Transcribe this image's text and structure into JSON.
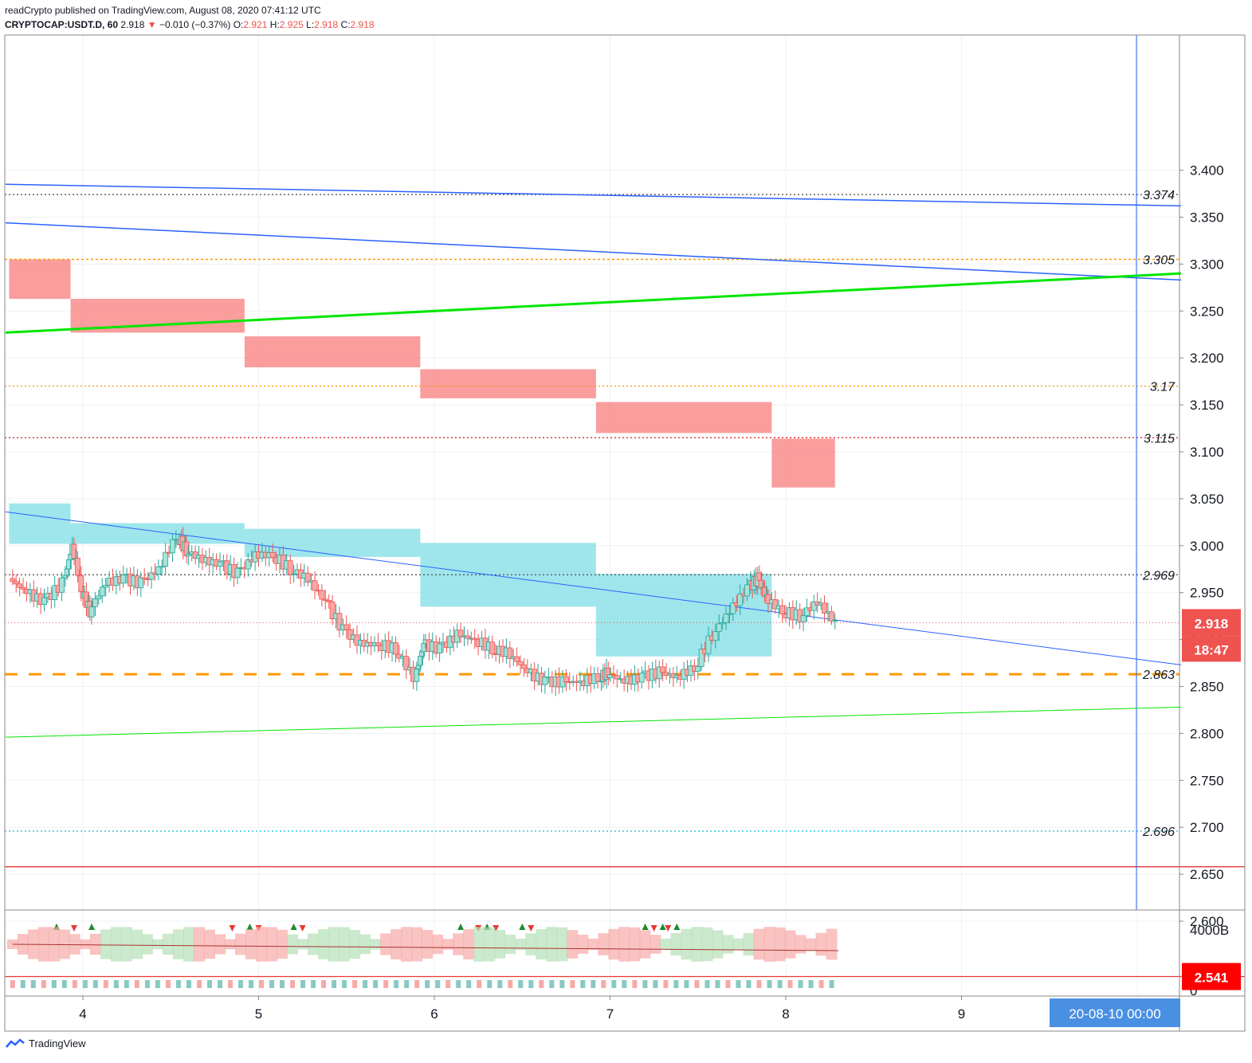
{
  "header": {
    "line1": "readCrypto published on TradingView.com, August 08, 2020 07:41:12 UTC",
    "symbol": "CRYPTOCAP:USDT.D, 60",
    "last": "2.918",
    "change": "−0.010 (−0.37%)",
    "o_label": "O:",
    "o_value": "2.921",
    "h_label": "H:",
    "h_value": "2.925",
    "l_label": "L:",
    "l_value": "2.918",
    "c_label": "C:",
    "c_value": "2.918"
  },
  "footer": {
    "brand": "TradingView"
  },
  "colors": {
    "up": "#26a69a",
    "down": "#ef5350",
    "cloud_red": "#f77c7c",
    "cloud_teal": "#7fdde5",
    "green_line": "#00e600",
    "blue_line": "#2962ff",
    "orange": "#ff9800"
  },
  "chart_data": {
    "type": "candlestick",
    "title": "",
    "price_axis": {
      "min": 2.53,
      "max": 3.44,
      "ticks": [
        "3.400",
        "3.350",
        "3.300",
        "3.250",
        "3.200",
        "3.150",
        "3.100",
        "3.050",
        "3.000",
        "2.950",
        "2.900",
        "2.850",
        "2.800",
        "2.750",
        "2.700",
        "2.650",
        "2.600"
      ]
    },
    "time_axis": {
      "ticks": [
        "4",
        "5",
        "6",
        "7",
        "8",
        "9"
      ],
      "min_day": 3.56,
      "max_day": 10.25,
      "cursor_label": "20-08-10   00:00"
    },
    "current_price": {
      "value": 2.918,
      "label": "2.918",
      "countdown": "18:47"
    },
    "red_line_label": {
      "value": 2.541,
      "label": "2.541"
    },
    "levels": [
      {
        "value": 3.374,
        "label": "3.374",
        "color": "#555555",
        "dash": "2,3"
      },
      {
        "value": 3.305,
        "label": "3.305",
        "color": "#ff9800",
        "dash": "3,3"
      },
      {
        "value": 3.17,
        "label": "3.17",
        "color": "#ff9800",
        "dash": "2,3"
      },
      {
        "value": 3.115,
        "label": "3.115",
        "color": "#d32f2f",
        "dash": "2,3"
      },
      {
        "value": 2.969,
        "label": "2.969",
        "color": "#555555",
        "dash": "2,3"
      },
      {
        "value": 2.863,
        "label": "2.863",
        "color": "#ff9800",
        "dash": "16,14"
      },
      {
        "value": 2.696,
        "label": "2.696",
        "color": "#26c6da",
        "dash": "2,3"
      }
    ],
    "red_solid_lines": [
      2.658,
      2.541
    ],
    "trend_lines": [
      {
        "from": [
          3.56,
          3.385
        ],
        "to": [
          10.25,
          3.362
        ],
        "color": "#2962ff",
        "width": 1.5
      },
      {
        "from": [
          3.56,
          3.344
        ],
        "to": [
          10.25,
          3.283
        ],
        "color": "#2962ff",
        "width": 1.5
      },
      {
        "from": [
          3.56,
          3.227
        ],
        "to": [
          10.25,
          3.29
        ],
        "color": "#00e600",
        "width": 3
      },
      {
        "from": [
          3.56,
          3.036
        ],
        "to": [
          10.25,
          2.873
        ],
        "color": "#2962ff",
        "width": 1
      },
      {
        "from": [
          3.56,
          2.796
        ],
        "to": [
          10.25,
          2.828
        ],
        "color": "#00e600",
        "width": 1
      }
    ],
    "red_cloud": [
      {
        "x0": 3.58,
        "x1": 3.93,
        "top": 3.305,
        "bottom": 3.263
      },
      {
        "x0": 3.93,
        "x1": 4.92,
        "top": 3.263,
        "bottom": 3.227
      },
      {
        "x0": 4.92,
        "x1": 5.92,
        "top": 3.223,
        "bottom": 3.19
      },
      {
        "x0": 5.92,
        "x1": 6.92,
        "top": 3.188,
        "bottom": 3.157
      },
      {
        "x0": 6.92,
        "x1": 7.92,
        "top": 3.153,
        "bottom": 3.12
      },
      {
        "x0": 7.92,
        "x1": 8.28,
        "top": 3.114,
        "bottom": 3.062
      }
    ],
    "teal_cloud": [
      {
        "x0": 3.58,
        "x1": 3.93,
        "top": 3.045,
        "bottom": 3.002
      },
      {
        "x0": 3.93,
        "x1": 4.92,
        "top": 3.024,
        "bottom": 3.002
      },
      {
        "x0": 4.92,
        "x1": 5.92,
        "top": 3.018,
        "bottom": 2.988
      },
      {
        "x0": 5.92,
        "x1": 6.92,
        "top": 3.003,
        "bottom": 2.935
      },
      {
        "x0": 6.92,
        "x1": 7.92,
        "top": 2.97,
        "bottom": 2.882
      }
    ],
    "volume_axis": {
      "ticks": [
        "4000B",
        "0"
      ]
    }
  }
}
